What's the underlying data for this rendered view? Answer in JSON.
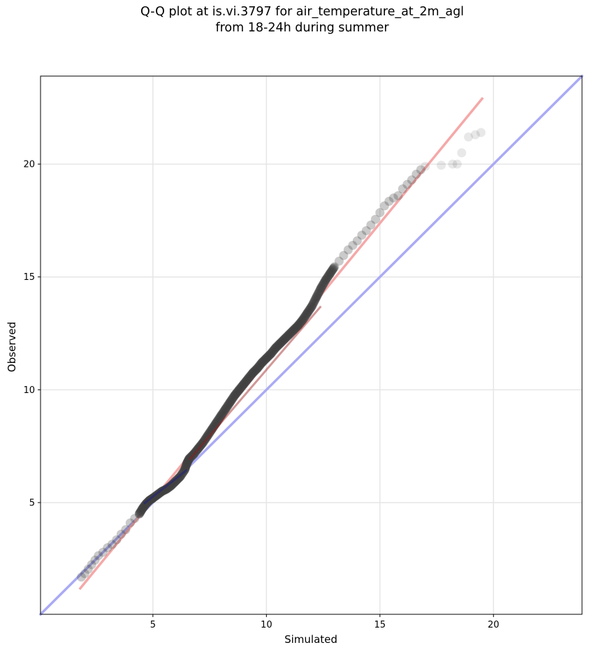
{
  "title_line1": "Q-Q plot at is.vi.3797 for air_temperature_at_2m_agl",
  "title_line2": "from 18-24h during summer",
  "chart_data": {
    "type": "scatter",
    "title": "Q-Q plot at is.vi.3797 for air_temperature_at_2m_agl from 18-24h during summer",
    "xlabel": "Simulated",
    "ylabel": "Observed",
    "xlim": [
      0.05,
      23.9
    ],
    "ylim": [
      0.05,
      23.9
    ],
    "xticks": [
      5,
      10,
      15,
      20
    ],
    "yticks": [
      5,
      10,
      15,
      20
    ],
    "grid": true,
    "colors": {
      "points": "#404040",
      "reference_line": "#aaaaf5",
      "fit_line": "#f5a8a8",
      "center_tint_blue": "#1a1a90",
      "center_tint_red": "#9a1818"
    },
    "reference_line": {
      "label": "1:1 line",
      "x": [
        0.05,
        23.9
      ],
      "y": [
        0.05,
        23.9
      ]
    },
    "fit_line": {
      "label": "linear fit",
      "x": [
        1.8,
        19.5
      ],
      "y": [
        1.2,
        22.9
      ]
    },
    "points": {
      "x": [
        1.85,
        2.0,
        2.15,
        2.3,
        2.45,
        2.6,
        2.8,
        3.0,
        3.2,
        3.4,
        3.6,
        3.8,
        4.0,
        4.2,
        4.4,
        4.55,
        4.7,
        4.85,
        5.0,
        5.2,
        5.4,
        5.6,
        5.8,
        6.0,
        6.2,
        6.4,
        6.5,
        6.6,
        6.8,
        7.0,
        7.2,
        7.4,
        7.6,
        7.8,
        8.0,
        8.2,
        8.4,
        8.6,
        8.8,
        9.0,
        9.2,
        9.4,
        9.6,
        9.8,
        10.0,
        10.2,
        10.4,
        10.6,
        10.8,
        11.0,
        11.2,
        11.4,
        11.6,
        11.8,
        12.0,
        12.2,
        12.4,
        12.6,
        12.8,
        13.0,
        13.2,
        13.4,
        13.6,
        13.8,
        14.0,
        14.2,
        14.4,
        14.6,
        14.8,
        15.0,
        15.2,
        15.4,
        15.6,
        15.8,
        16.0,
        16.2,
        16.4,
        16.6,
        16.8,
        17.0,
        17.7,
        18.2,
        18.4,
        18.6,
        18.9,
        19.2,
        19.45
      ],
      "y": [
        1.7,
        1.85,
        2.05,
        2.25,
        2.45,
        2.65,
        2.8,
        3.0,
        3.15,
        3.35,
        3.6,
        3.8,
        4.1,
        4.3,
        4.5,
        4.75,
        4.95,
        5.1,
        5.2,
        5.35,
        5.5,
        5.6,
        5.75,
        5.95,
        6.15,
        6.45,
        6.75,
        6.95,
        7.15,
        7.4,
        7.65,
        7.95,
        8.25,
        8.55,
        8.85,
        9.15,
        9.45,
        9.75,
        10.0,
        10.25,
        10.5,
        10.75,
        10.95,
        11.2,
        11.4,
        11.6,
        11.85,
        12.05,
        12.25,
        12.45,
        12.65,
        12.85,
        13.1,
        13.4,
        13.7,
        14.1,
        14.5,
        14.85,
        15.15,
        15.45,
        15.7,
        15.95,
        16.2,
        16.4,
        16.6,
        16.85,
        17.05,
        17.3,
        17.55,
        17.85,
        18.15,
        18.35,
        18.5,
        18.6,
        18.9,
        19.1,
        19.3,
        19.55,
        19.75,
        19.9,
        19.95,
        20.0,
        20.0,
        20.5,
        21.2,
        21.3,
        21.4
      ]
    }
  }
}
